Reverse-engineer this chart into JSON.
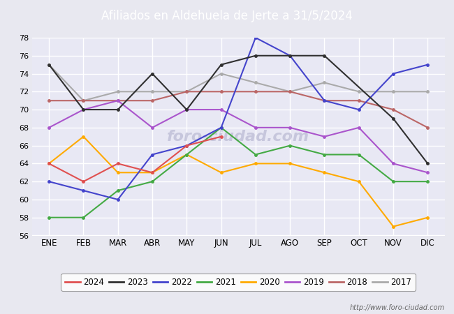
{
  "title": "Afiliados en Aldehuela de Jerte a 31/5/2024",
  "header_bg": "#4d79c7",
  "xlabel": "",
  "ylabel": "",
  "ylim": [
    56,
    78
  ],
  "yticks": [
    56,
    58,
    60,
    62,
    64,
    66,
    68,
    70,
    72,
    74,
    76,
    78
  ],
  "months": [
    "ENE",
    "FEB",
    "MAR",
    "ABR",
    "MAY",
    "JUN",
    "JUL",
    "AGO",
    "SEP",
    "OCT",
    "NOV",
    "DIC"
  ],
  "url": "http://www.foro-ciudad.com",
  "series": {
    "2024": {
      "color": "#e05050",
      "data": [
        64,
        62,
        64,
        63,
        66,
        67,
        null,
        null,
        null,
        null,
        null,
        null
      ]
    },
    "2023": {
      "color": "#303030",
      "data": [
        75,
        70,
        70,
        74,
        70,
        75,
        76,
        76,
        76,
        null,
        69,
        64
      ]
    },
    "2022": {
      "color": "#4444cc",
      "data": [
        62,
        61,
        60,
        65,
        66,
        68,
        78,
        76,
        71,
        70,
        74,
        75
      ]
    },
    "2021": {
      "color": "#44aa44",
      "data": [
        58,
        58,
        61,
        62,
        65,
        68,
        65,
        66,
        65,
        65,
        62,
        62
      ]
    },
    "2020": {
      "color": "#ffaa00",
      "data": [
        64,
        67,
        63,
        63,
        65,
        63,
        64,
        64,
        63,
        62,
        57,
        58
      ]
    },
    "2019": {
      "color": "#aa55cc",
      "data": [
        68,
        70,
        71,
        68,
        70,
        70,
        68,
        68,
        67,
        68,
        64,
        63
      ]
    },
    "2018": {
      "color": "#bb6666",
      "data": [
        71,
        71,
        71,
        71,
        72,
        72,
        72,
        72,
        71,
        71,
        70,
        68
      ]
    },
    "2017": {
      "color": "#aaaaaa",
      "data": [
        75,
        71,
        72,
        72,
        72,
        74,
        73,
        72,
        73,
        72,
        72,
        72
      ]
    }
  },
  "background_color": "#e8e8f0",
  "plot_bg": "#e8e8f4",
  "grid_color": "#ffffff",
  "legend_years": [
    "2024",
    "2023",
    "2022",
    "2021",
    "2020",
    "2019",
    "2018",
    "2017"
  ]
}
